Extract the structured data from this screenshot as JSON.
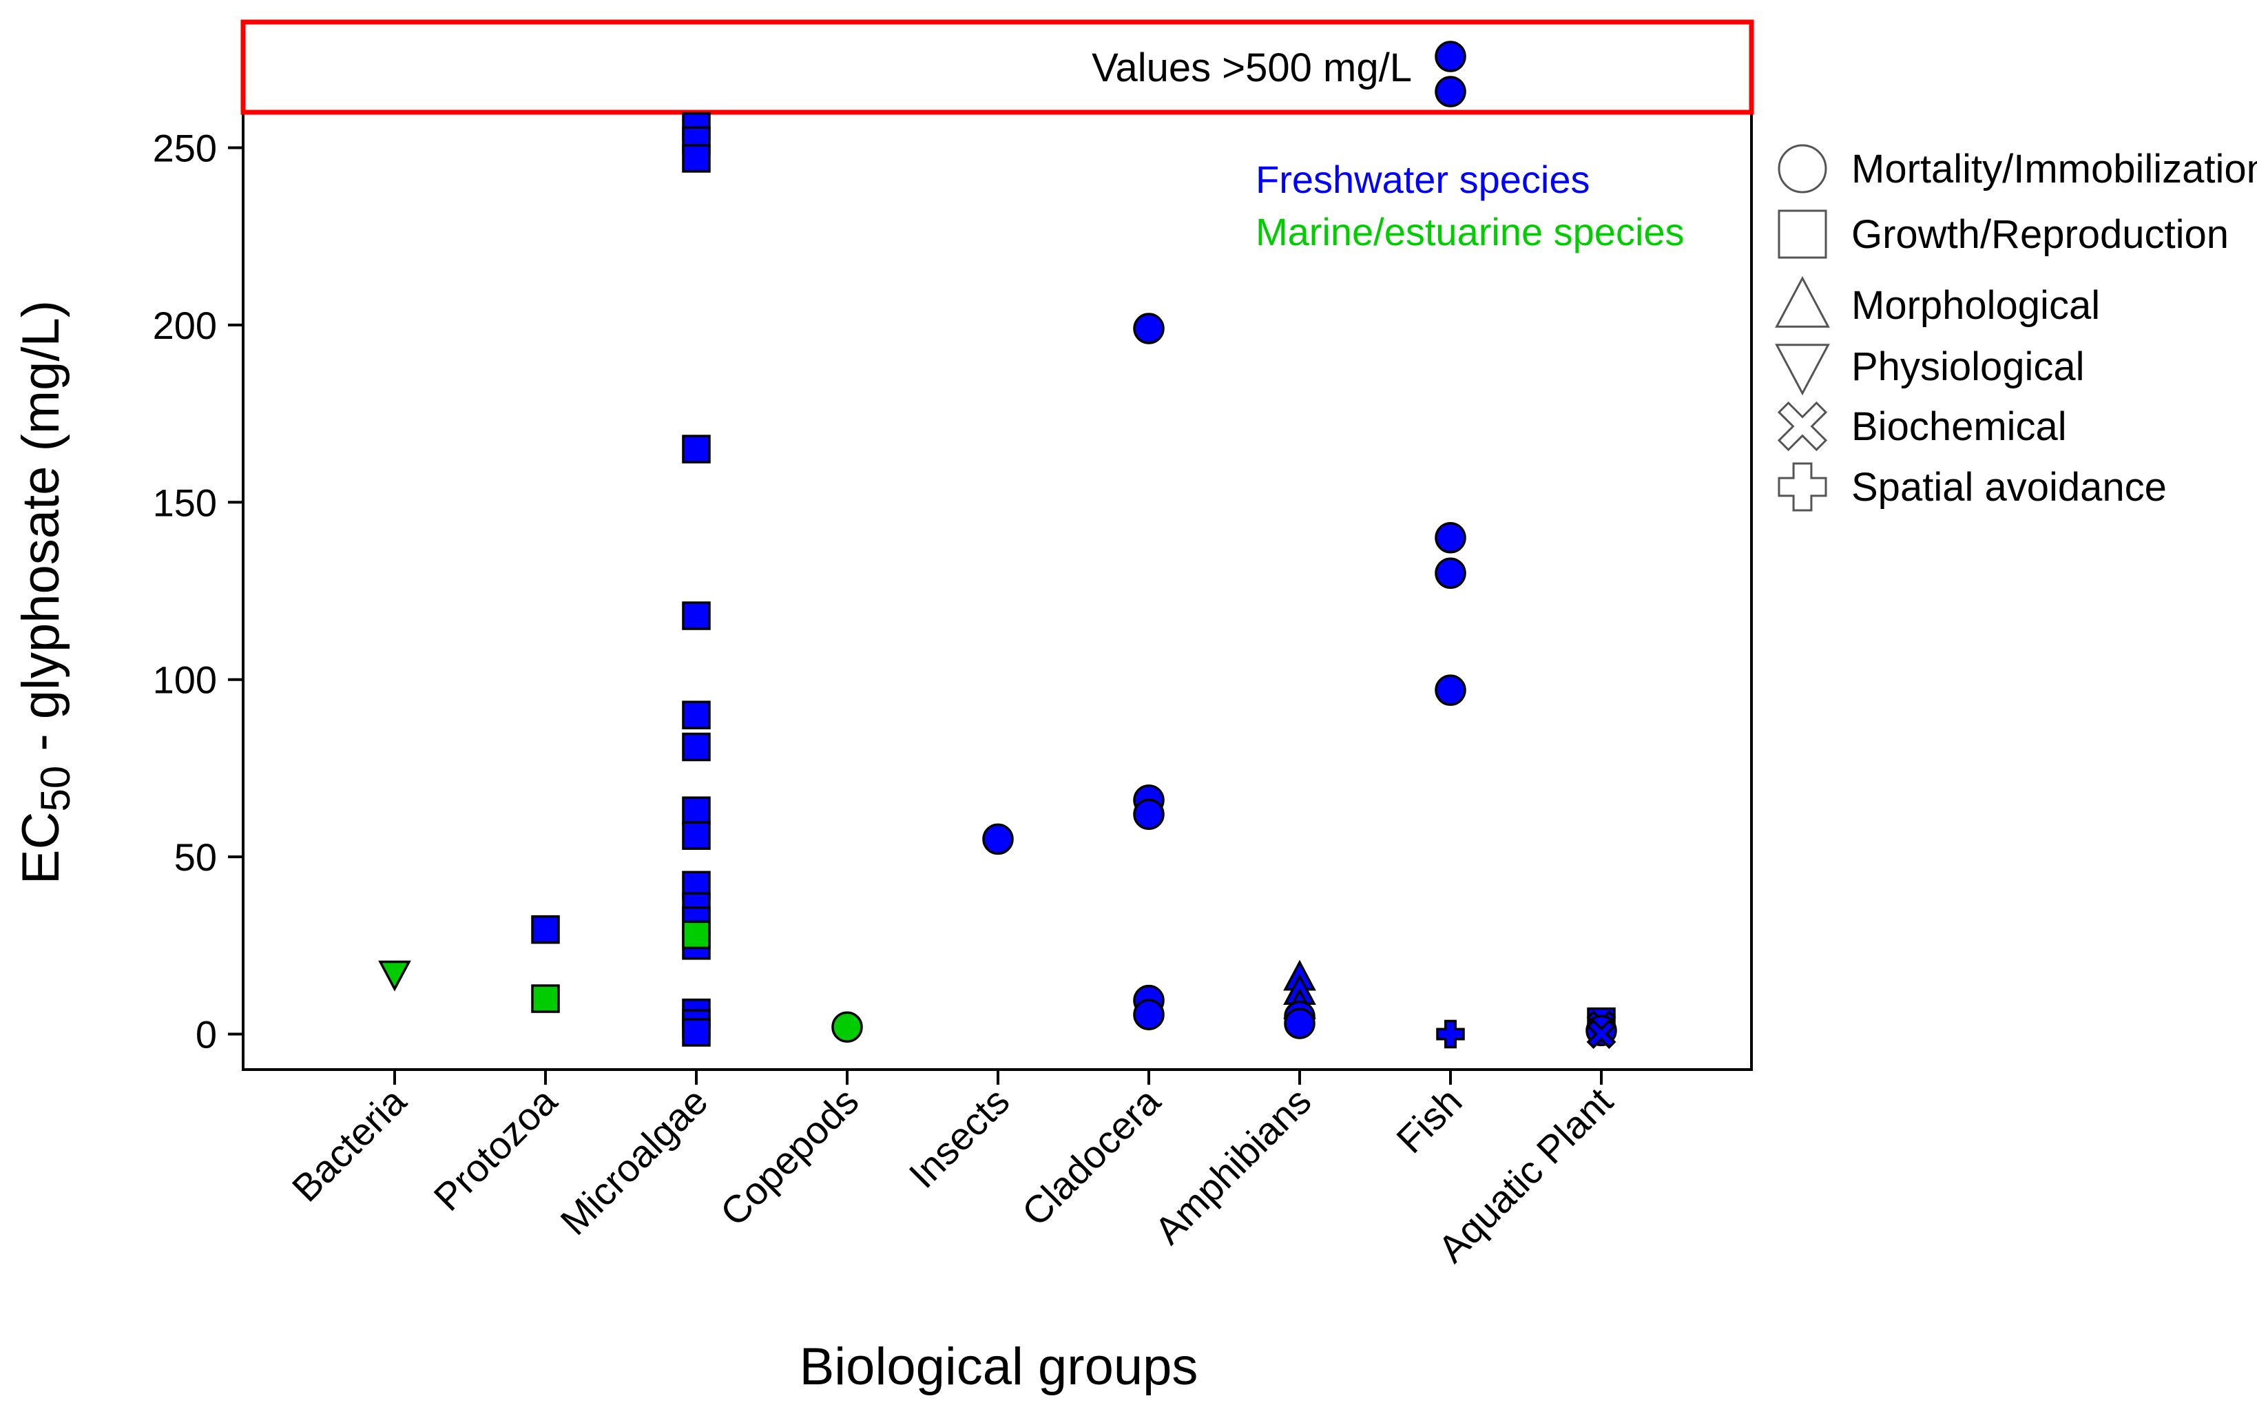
{
  "chart_data": {
    "type": "scatter",
    "title": "",
    "xlabel": "Biological groups",
    "ylabel_main": "EC",
    "ylabel_sub": "50",
    "ylabel_rest": " - glyphosate (mg/L)",
    "ylim": [
      -10,
      260
    ],
    "yticks": [
      0,
      50,
      100,
      150,
      200,
      250
    ],
    "categories": [
      "Bacteria",
      "Protozoa",
      "Microalgae",
      "Copepods",
      "Insects",
      "Cladocera",
      "Amphibians",
      "Fish",
      "Aquatic Plant"
    ],
    "inset_label": "Values >500 mg/L",
    "colors": {
      "freshwater": "#0000ff",
      "marine": "#00cc00",
      "frame": "#000000",
      "inset_border": "#ff0000"
    },
    "color_legend": [
      {
        "name": "Freshwater species",
        "key": "freshwater"
      },
      {
        "name": "Marine/estuarine species",
        "key": "marine"
      }
    ],
    "marker_legend": [
      {
        "name": "Mortality/Immobilization",
        "marker": "circle"
      },
      {
        "name": "Growth/Reproduction",
        "marker": "square"
      },
      {
        "name": "Morphological",
        "marker": "triangle-up"
      },
      {
        "name": "Physiological",
        "marker": "triangle-down"
      },
      {
        "name": "Biochemical",
        "marker": "x"
      },
      {
        "name": "Spatial avoidance",
        "marker": "plus"
      }
    ],
    "points": [
      {
        "group": "Bacteria",
        "y": 17,
        "marker": "triangle-down",
        "habitat": "marine"
      },
      {
        "group": "Protozoa",
        "y": 29.5,
        "marker": "square",
        "habitat": "freshwater"
      },
      {
        "group": "Protozoa",
        "y": 10,
        "marker": "square",
        "habitat": "marine"
      },
      {
        "group": "Microalgae",
        "y": 256,
        "marker": "square",
        "habitat": "freshwater"
      },
      {
        "group": "Microalgae",
        "y": 252,
        "marker": "square",
        "habitat": "freshwater"
      },
      {
        "group": "Microalgae",
        "y": 247,
        "marker": "square",
        "habitat": "freshwater"
      },
      {
        "group": "Microalgae",
        "y": 165,
        "marker": "square",
        "habitat": "freshwater"
      },
      {
        "group": "Microalgae",
        "y": 118,
        "marker": "square",
        "habitat": "freshwater"
      },
      {
        "group": "Microalgae",
        "y": 90,
        "marker": "square",
        "habitat": "freshwater"
      },
      {
        "group": "Microalgae",
        "y": 81,
        "marker": "square",
        "habitat": "freshwater"
      },
      {
        "group": "Microalgae",
        "y": 63,
        "marker": "square",
        "habitat": "freshwater"
      },
      {
        "group": "Microalgae",
        "y": 56,
        "marker": "square",
        "habitat": "freshwater"
      },
      {
        "group": "Microalgae",
        "y": 42,
        "marker": "square",
        "habitat": "freshwater"
      },
      {
        "group": "Microalgae",
        "y": 36,
        "marker": "square",
        "habitat": "freshwater"
      },
      {
        "group": "Microalgae",
        "y": 32,
        "marker": "square",
        "habitat": "freshwater"
      },
      {
        "group": "Microalgae",
        "y": 25,
        "marker": "square",
        "habitat": "freshwater"
      },
      {
        "group": "Microalgae",
        "y": 28,
        "marker": "square",
        "habitat": "marine"
      },
      {
        "group": "Microalgae",
        "y": 6,
        "marker": "square",
        "habitat": "freshwater"
      },
      {
        "group": "Microalgae",
        "y": 3,
        "marker": "square",
        "habitat": "freshwater"
      },
      {
        "group": "Microalgae",
        "y": 0.5,
        "marker": "square",
        "habitat": "freshwater"
      },
      {
        "group": "Copepods",
        "y": 2,
        "marker": "circle",
        "habitat": "marine"
      },
      {
        "group": "Insects",
        "y": 55,
        "marker": "circle",
        "habitat": "freshwater"
      },
      {
        "group": "Cladocera",
        "y": 199,
        "marker": "circle",
        "habitat": "freshwater"
      },
      {
        "group": "Cladocera",
        "y": 66,
        "marker": "circle",
        "habitat": "freshwater"
      },
      {
        "group": "Cladocera",
        "y": 62,
        "marker": "circle",
        "habitat": "freshwater"
      },
      {
        "group": "Cladocera",
        "y": 9.5,
        "marker": "circle",
        "habitat": "freshwater"
      },
      {
        "group": "Cladocera",
        "y": 5.5,
        "marker": "circle",
        "habitat": "freshwater"
      },
      {
        "group": "Amphibians",
        "y": 16,
        "marker": "triangle-up",
        "habitat": "freshwater"
      },
      {
        "group": "Amphibians",
        "y": 12,
        "marker": "triangle-up",
        "habitat": "freshwater"
      },
      {
        "group": "Amphibians",
        "y": 8,
        "marker": "triangle-up",
        "habitat": "freshwater"
      },
      {
        "group": "Amphibians",
        "y": 5,
        "marker": "circle",
        "habitat": "freshwater"
      },
      {
        "group": "Amphibians",
        "y": 3,
        "marker": "circle",
        "habitat": "freshwater"
      },
      {
        "group": "Fish",
        "y": 140,
        "marker": "circle",
        "habitat": "freshwater"
      },
      {
        "group": "Fish",
        "y": 130,
        "marker": "circle",
        "habitat": "freshwater"
      },
      {
        "group": "Fish",
        "y": 97,
        "marker": "circle",
        "habitat": "freshwater"
      },
      {
        "group": "Fish",
        "y": 0,
        "marker": "plus",
        "habitat": "freshwater"
      },
      {
        "group": "Aquatic Plant",
        "y": 3.5,
        "marker": "square",
        "habitat": "freshwater"
      },
      {
        "group": "Aquatic Plant",
        "y": 2.5,
        "marker": "x",
        "habitat": "freshwater"
      },
      {
        "group": "Aquatic Plant",
        "y": 1,
        "marker": "circle",
        "habitat": "freshwater"
      },
      {
        "group": "Aquatic Plant",
        "y": 0,
        "marker": "x",
        "habitat": "freshwater"
      }
    ],
    "inset_points": [
      {
        "group": "Fish",
        "label": ">500",
        "marker": "circle",
        "habitat": "freshwater"
      },
      {
        "group": "Fish",
        "label": ">500",
        "marker": "circle",
        "habitat": "freshwater"
      }
    ]
  }
}
